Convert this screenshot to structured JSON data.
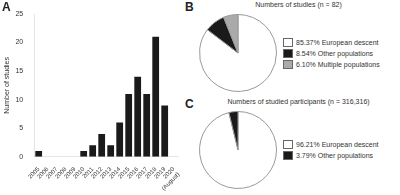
{
  "chart_data": [
    {
      "type": "bar",
      "categories": [
        "2005",
        "2006",
        "2007",
        "2008",
        "2009",
        "2010",
        "2011",
        "2012",
        "2013",
        "2014",
        "2015",
        "2016",
        "2017",
        "2018",
        "2019",
        "2020\n(August)"
      ],
      "values": [
        1,
        0,
        0,
        0,
        0,
        1,
        2,
        4,
        2,
        6,
        11,
        14,
        11,
        21,
        9,
        0
      ],
      "color": "#1a1a1a",
      "y_label": "Number of studies",
      "ylim": [
        0,
        25
      ],
      "yticks": [
        0,
        5,
        10,
        15,
        20,
        25
      ],
      "grid": false,
      "annotations": [
        "A"
      ]
    },
    {
      "type": "pie",
      "title": "Numbers of studies (n = 82)",
      "categories": [
        "85.37% European descent",
        "8.54% Other populations",
        "6.10% Multiple populations"
      ],
      "values": [
        85.37,
        8.54,
        6.1
      ],
      "colors": [
        "#ffffff",
        "#1a1a1a",
        "#aaaaaa"
      ],
      "legend": "right",
      "annotations": [
        "B"
      ]
    },
    {
      "type": "pie",
      "title": "Numbers of studied participants (n = 316,316)",
      "categories": [
        "96.21% European descent",
        "3.79% Other populations"
      ],
      "values": [
        96.21,
        3.79
      ],
      "colors": [
        "#ffffff",
        "#1a1a1a"
      ],
      "legend": "right",
      "annotations": [
        "C"
      ]
    }
  ]
}
